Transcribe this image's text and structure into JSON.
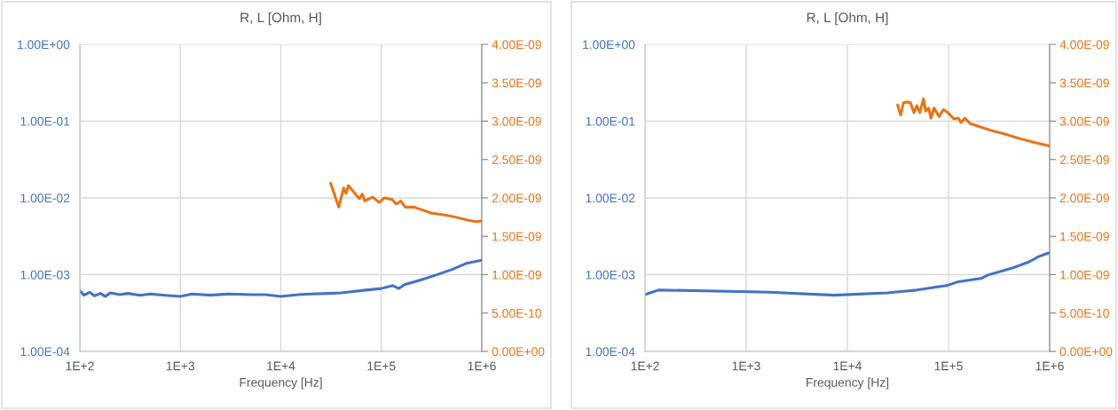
{
  "chart_data": [
    {
      "type": "line",
      "title": "R, L [Ohm, H]",
      "xlabel": "Frequency [Hz]",
      "log": "xy",
      "grid": true,
      "legend": false,
      "marker": "none",
      "line_style": "solid",
      "xlim": [
        100,
        1000000
      ],
      "xticks": [
        {
          "value": 100,
          "label": "1E+2"
        },
        {
          "value": 1000,
          "label": "1E+3"
        },
        {
          "value": 10000,
          "label": "1E+4"
        },
        {
          "value": 100000,
          "label": "1E+5"
        },
        {
          "value": 1000000,
          "label": "1E+6"
        }
      ],
      "ylim": [
        0.0001,
        1
      ],
      "yticks": [
        {
          "value": 0.0001,
          "label": "1.00E-04"
        },
        {
          "value": 0.001,
          "label": "1.00E-03"
        },
        {
          "value": 0.01,
          "label": "1.00E-02"
        },
        {
          "value": 0.1,
          "label": "1.00E-01"
        },
        {
          "value": 1,
          "label": "1.00E+00"
        }
      ],
      "y2lim": [
        0,
        4e-09
      ],
      "y2ticks": [
        {
          "value": 0,
          "label": "0.00E+00"
        },
        {
          "value": 5e-10,
          "label": "5.00E-10"
        },
        {
          "value": 1e-09,
          "label": "1.00E-09"
        },
        {
          "value": 1.5e-09,
          "label": "1.50E-09"
        },
        {
          "value": 2e-09,
          "label": "2.00E-09"
        },
        {
          "value": 2.5e-09,
          "label": "2.50E-09"
        },
        {
          "value": 3e-09,
          "label": "3.00E-09"
        },
        {
          "value": 3.5e-09,
          "label": "3.50E-09"
        },
        {
          "value": 4e-09,
          "label": "4.00E-09"
        }
      ],
      "series": [
        {
          "color": "#4472c4",
          "x": [
            100,
            110,
            125,
            140,
            160,
            180,
            200,
            250,
            300,
            400,
            500,
            700,
            1000,
            1300,
            2000,
            3000,
            5000,
            7000,
            10000,
            15000,
            20000,
            30000,
            40000,
            50000,
            70000,
            100000,
            130000,
            150000,
            170000,
            250000,
            350000,
            500000,
            700000,
            1000000
          ],
          "values": [
            0.00062,
            0.00054,
            0.00059,
            0.00053,
            0.00057,
            0.00052,
            0.00058,
            0.00055,
            0.00057,
            0.00054,
            0.00056,
            0.00054,
            0.00052,
            0.00056,
            0.00054,
            0.00056,
            0.00055,
            0.00055,
            0.00052,
            0.00055,
            0.00056,
            0.00057,
            0.00058,
            0.0006,
            0.00063,
            0.00066,
            0.00072,
            0.00066,
            0.00074,
            0.00086,
            0.00099,
            0.00116,
            0.0014,
            0.00154
          ]
        },
        {
          "color": "#e97316",
          "axis": "y2",
          "x": [
            31300,
            37700,
            42200,
            44600,
            47100,
            60400,
            64700,
            68300,
            82000,
            95100,
            107000,
            128000,
            141000,
            156000,
            173000,
            212000,
            260000,
            318000,
            417000,
            547000,
            718000,
            880000,
            986000
          ],
          "values": [
            2.19e-09,
            1.88e-09,
            2.13e-09,
            2.06e-09,
            2.16e-09,
            1.99e-09,
            2.05e-09,
            1.96e-09,
            2.01e-09,
            1.94e-09,
            2e-09,
            1.98e-09,
            1.92e-09,
            1.96e-09,
            1.88e-09,
            1.88e-09,
            1.84e-09,
            1.8e-09,
            1.78e-09,
            1.75e-09,
            1.71e-09,
            1.69e-09,
            1.7e-09
          ]
        }
      ]
    },
    {
      "type": "line",
      "title": "R, L [Ohm, H]",
      "xlabel": "Frequency [Hz]",
      "log": "xy",
      "grid": true,
      "legend": false,
      "marker": "none",
      "line_style": "solid",
      "xlim": [
        100,
        1000000
      ],
      "xticks": [
        {
          "value": 100,
          "label": "1E+2"
        },
        {
          "value": 1000,
          "label": "1E+3"
        },
        {
          "value": 10000,
          "label": "1E+4"
        },
        {
          "value": 100000,
          "label": "1E+5"
        },
        {
          "value": 1000000,
          "label": "1E+6"
        }
      ],
      "ylim": [
        0.0001,
        1
      ],
      "yticks": [
        {
          "value": 0.0001,
          "label": "1.00E-04"
        },
        {
          "value": 0.001,
          "label": "1.00E-03"
        },
        {
          "value": 0.01,
          "label": "1.00E-02"
        },
        {
          "value": 0.1,
          "label": "1.00E-01"
        },
        {
          "value": 1,
          "label": "1.00E+00"
        }
      ],
      "y2lim": [
        0,
        4e-09
      ],
      "y2ticks": [
        {
          "value": 0,
          "label": "0.00E+00"
        },
        {
          "value": 5e-10,
          "label": "5.00E-10"
        },
        {
          "value": 1e-09,
          "label": "1.00E-09"
        },
        {
          "value": 1.5e-09,
          "label": "1.50E-09"
        },
        {
          "value": 2e-09,
          "label": "2.00E-09"
        },
        {
          "value": 2.5e-09,
          "label": "2.50E-09"
        },
        {
          "value": 3e-09,
          "label": "3.00E-09"
        },
        {
          "value": 3.5e-09,
          "label": "3.50E-09"
        },
        {
          "value": 4e-09,
          "label": "4.00E-09"
        }
      ],
      "series": [
        {
          "color": "#4472c4",
          "x": [
            100,
            135,
            312,
            1680,
            7380,
            24800,
            48600,
            95500,
            125000,
            214000,
            245000,
            420000,
            628000,
            769000,
            975000
          ],
          "values": [
            0.00055,
            0.00063,
            0.00062,
            0.00059,
            0.00054,
            0.00058,
            0.00063,
            0.00072,
            0.00081,
            0.0009,
            0.00099,
            0.00121,
            0.00147,
            0.00171,
            0.00192
          ]
        },
        {
          "color": "#e97316",
          "axis": "y2",
          "x": [
            31400,
            33600,
            35900,
            39300,
            42000,
            45500,
            48600,
            52100,
            56500,
            59500,
            63700,
            67100,
            71900,
            80500,
            89100,
            98600,
            113000,
            125000,
            133000,
            145000,
            163000,
            200000,
            262000,
            366000,
            514000,
            719000,
            975000
          ],
          "values": [
            3.21e-09,
            3.08e-09,
            3.24e-09,
            3.25e-09,
            3.24e-09,
            3.11e-09,
            3.2e-09,
            3.11e-09,
            3.29e-09,
            3.13e-09,
            3.17e-09,
            3.04e-09,
            3.17e-09,
            3.06e-09,
            3.15e-09,
            3.11e-09,
            3.03e-09,
            3.04e-09,
            2.98e-09,
            3.04e-09,
            2.97e-09,
            2.93e-09,
            2.88e-09,
            2.83e-09,
            2.77e-09,
            2.72e-09,
            2.68e-09
          ]
        }
      ]
    }
  ]
}
